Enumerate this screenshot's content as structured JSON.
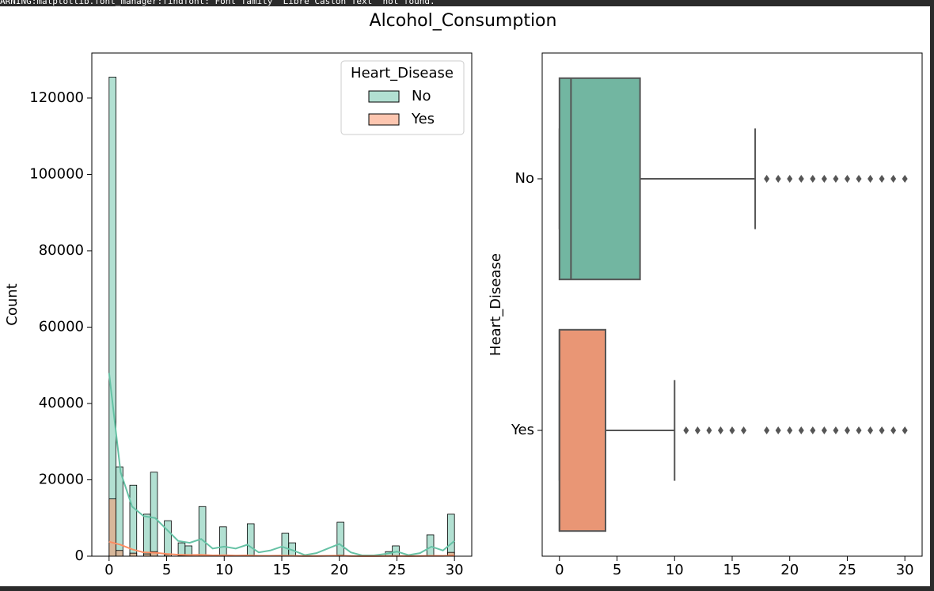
{
  "warning": "ARNING:matplotlib.font_manager:findfont: Font family 'Libre Caslon Text' not found.",
  "title": "Alcohol_Consumption",
  "chart_data": [
    {
      "type": "histogram",
      "ylabel": "Count",
      "legend_title": "Heart_Disease",
      "legend": "upper right",
      "bins": [
        0,
        0.6,
        1.2,
        1.8,
        2.4,
        3,
        3.6,
        4.2,
        4.8,
        5.4,
        6,
        6.6,
        7.2,
        7.8,
        8.4,
        9,
        9.6,
        10.2,
        10.8,
        11.4,
        12,
        12.6,
        13.2,
        13.8,
        14.4,
        15,
        15.6,
        16.2,
        16.8,
        17.4,
        18,
        18.6,
        19.2,
        19.8,
        20.4,
        21,
        21.6,
        22.2,
        22.8,
        23.4,
        24,
        24.6,
        25.2,
        25.8,
        26.4,
        27,
        27.6,
        28.2,
        28.8,
        29.4,
        30
      ],
      "series": [
        {
          "name": "No",
          "color": "#66c2a5",
          "values": [
            125500,
            23400,
            0,
            18600,
            0,
            11000,
            22000,
            0,
            9300,
            0,
            3500,
            2700,
            0,
            13000,
            0,
            0,
            7700,
            0,
            0,
            0,
            8500,
            0,
            0,
            0,
            0,
            6000,
            3500,
            0,
            0,
            0,
            0,
            0,
            0,
            8900,
            0,
            0,
            0,
            0,
            0,
            0,
            1200,
            2700,
            0,
            0,
            0,
            0,
            5600,
            0,
            0,
            11000
          ],
          "kde_values": [
            48000,
            22000,
            13000,
            10500,
            10000,
            7000,
            4000,
            3500,
            4500,
            2000,
            2500,
            2000,
            3000,
            1000,
            1500,
            2500,
            1500,
            300,
            800,
            2000,
            3200,
            1000,
            200,
            200,
            600,
            1200,
            300,
            800,
            2500,
            1500,
            4000
          ]
        },
        {
          "name": "Yes",
          "color": "#fc8d62",
          "values": [
            15000,
            1500,
            0,
            800,
            0,
            600,
            1200,
            0,
            400,
            0,
            150,
            100,
            0,
            400,
            0,
            0,
            250,
            0,
            0,
            0,
            250,
            0,
            0,
            0,
            0,
            200,
            100,
            0,
            0,
            0,
            0,
            0,
            0,
            300,
            0,
            0,
            0,
            0,
            0,
            0,
            50,
            100,
            0,
            0,
            0,
            0,
            200,
            0,
            0,
            1000
          ],
          "kde_values": [
            3800,
            3000,
            1800,
            1000,
            900,
            600,
            400,
            300,
            350,
            200,
            250,
            150,
            200,
            100,
            100,
            150,
            100,
            50,
            50,
            100,
            150,
            50,
            30,
            30,
            50,
            80,
            30,
            50,
            100,
            80,
            200
          ]
        }
      ],
      "kde_x": [
        0,
        1,
        2,
        3,
        4,
        5,
        6,
        7,
        8,
        9,
        10,
        11,
        12,
        13,
        14,
        15,
        16,
        17,
        18,
        19,
        20,
        21,
        22,
        23,
        24,
        25,
        26,
        27,
        28,
        29,
        30
      ],
      "xlim": [
        -1.5,
        31.5
      ],
      "xticks": [
        0,
        5,
        10,
        15,
        20,
        25,
        30
      ],
      "ylim": [
        0,
        131800
      ],
      "yticks": [
        0,
        20000,
        40000,
        60000,
        80000,
        100000,
        120000
      ]
    },
    {
      "type": "box",
      "ylabel": "Heart_Disease",
      "categories": [
        "No",
        "Yes"
      ],
      "boxes": [
        {
          "color": "#72b6a1",
          "whisker_low": 0,
          "q1": 0,
          "median": 1,
          "q3": 7,
          "whisker_high": 17,
          "outliers": [
            18,
            19,
            20,
            21,
            22,
            23,
            24,
            25,
            26,
            27,
            28,
            29,
            30
          ]
        },
        {
          "color": "#e99675",
          "whisker_low": 0,
          "q1": 0,
          "median": 0,
          "q3": 4,
          "whisker_high": 10,
          "outliers": [
            11,
            12,
            13,
            14,
            15,
            16,
            18,
            19,
            20,
            21,
            22,
            23,
            24,
            25,
            26,
            27,
            28,
            29,
            30
          ]
        }
      ],
      "xlim": [
        -1.5,
        31.5
      ],
      "xticks": [
        0,
        5,
        10,
        15,
        20,
        25,
        30
      ]
    }
  ]
}
